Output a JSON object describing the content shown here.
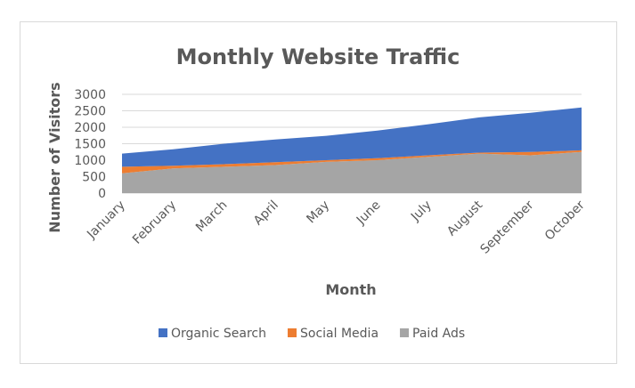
{
  "chart_data": {
    "type": "area",
    "title": "Monthly Website Traffic",
    "xlabel": "Month",
    "ylabel": "Number of Visitors",
    "categories": [
      "January",
      "February",
      "March",
      "April",
      "May",
      "June",
      "July",
      "August",
      "September",
      "October"
    ],
    "stacked": true,
    "series": [
      {
        "name": "Paid Ads",
        "color": "#a5a5a5",
        "values": [
          600,
          750,
          800,
          850,
          950,
          1000,
          1100,
          1200,
          1150,
          1250
        ]
      },
      {
        "name": "Social Media",
        "color": "#ed7d31",
        "values": [
          200,
          80,
          80,
          90,
          50,
          60,
          50,
          30,
          100,
          50
        ]
      },
      {
        "name": "Organic Search",
        "color": "#4472c4",
        "values": [
          400,
          500,
          620,
          690,
          740,
          840,
          940,
          1070,
          1190,
          1300
        ]
      }
    ],
    "ylim": [
      0,
      3000
    ],
    "yticks": [
      0,
      500,
      1000,
      1500,
      2000,
      2500,
      3000
    ],
    "grid": true,
    "legend": {
      "position": "bottom",
      "entries": [
        {
          "label": "Organic Search",
          "color": "#4472c4"
        },
        {
          "label": "Social Media",
          "color": "#ed7d31"
        },
        {
          "label": "Paid Ads",
          "color": "#a5a5a5"
        }
      ]
    }
  }
}
